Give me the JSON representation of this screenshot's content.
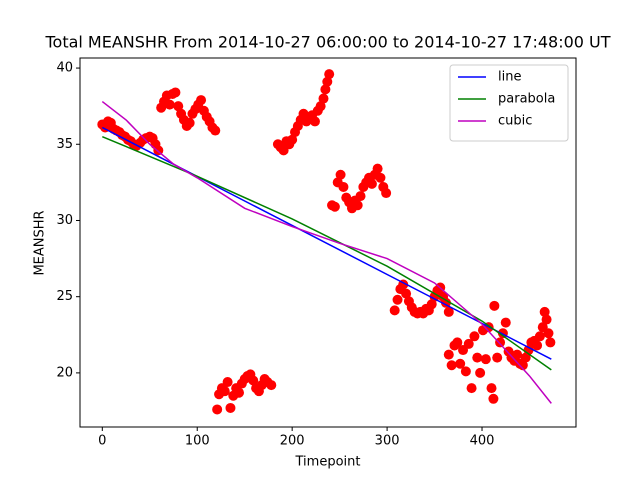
{
  "chart_data": {
    "type": "scatter",
    "title": "Total MEANSHR From 2014-10-27 06:00:00 to 2014-10-27 17:48:00 UT",
    "x_label": "Timepoint",
    "y_label": "MEANSHR",
    "xlim": [
      -23.5,
      499
    ],
    "ylim": [
      16.45,
      40.66
    ],
    "xticks": [
      0,
      100,
      200,
      300,
      400
    ],
    "yticks": [
      20,
      25,
      30,
      35,
      40
    ],
    "legend": "upper right",
    "series": [
      {
        "type": "scatter",
        "color": "#ff0000",
        "x": [
          0,
          3,
          6,
          9,
          12,
          15,
          18,
          21,
          24,
          27,
          30,
          33,
          36,
          40,
          43,
          46,
          50,
          53,
          56,
          59,
          62,
          65,
          68,
          71,
          74,
          77,
          80,
          83,
          86,
          89,
          92,
          95,
          98,
          101,
          104,
          107,
          110,
          113,
          116,
          119,
          121,
          123,
          126,
          129,
          132,
          135,
          138,
          141,
          144,
          147,
          150,
          153,
          156,
          159,
          162,
          165,
          168,
          171,
          174,
          178,
          185,
          188,
          191,
          194,
          197,
          200,
          203,
          206,
          209,
          212,
          215,
          218,
          221,
          224,
          227,
          230,
          233,
          235,
          237,
          239,
          242,
          245,
          248,
          251,
          254,
          257,
          260,
          263,
          266,
          269,
          272,
          275,
          278,
          281,
          284,
          287,
          290,
          293,
          296,
          299,
          308,
          311,
          314,
          317,
          320,
          323,
          326,
          329,
          332,
          335,
          338,
          341,
          344,
          347,
          350,
          353,
          356,
          359,
          362,
          365,
          365,
          368,
          371,
          374,
          377,
          380,
          383,
          386,
          389,
          392,
          395,
          398,
          401,
          404,
          407,
          410,
          412,
          413,
          416,
          419,
          422,
          425,
          428,
          431,
          434,
          437,
          440,
          443,
          446,
          449,
          452,
          455,
          458,
          461,
          464,
          466,
          468,
          470,
          472
        ],
        "values": [
          36.3,
          36.1,
          36.5,
          36.4,
          36.0,
          35.9,
          35.8,
          35.6,
          35.5,
          35.3,
          35.2,
          35.0,
          34.9,
          35.1,
          35.3,
          35.4,
          35.5,
          35.4,
          35.0,
          34.6,
          37.4,
          37.8,
          38.2,
          37.6,
          38.3,
          38.4,
          37.5,
          37.0,
          36.6,
          36.2,
          36.4,
          37.0,
          37.3,
          37.6,
          37.9,
          37.2,
          36.8,
          36.5,
          36.1,
          35.9,
          17.6,
          18.6,
          19.0,
          18.8,
          19.4,
          17.7,
          18.5,
          19.0,
          18.7,
          19.3,
          19.6,
          19.8,
          19.9,
          19.5,
          19.0,
          18.8,
          19.2,
          19.6,
          19.4,
          19.2,
          35.0,
          34.8,
          34.6,
          35.2,
          35.0,
          35.3,
          35.8,
          36.2,
          36.6,
          37.0,
          36.5,
          36.8,
          36.9,
          36.5,
          37.2,
          37.5,
          38.0,
          38.6,
          39.1,
          39.6,
          31.0,
          30.9,
          32.5,
          33.0,
          32.2,
          31.5,
          31.2,
          30.8,
          31.3,
          31.0,
          31.6,
          32.2,
          32.5,
          32.8,
          32.4,
          33.0,
          33.4,
          32.8,
          32.2,
          31.8,
          24.1,
          24.8,
          25.5,
          25.8,
          25.2,
          24.7,
          24.3,
          24.0,
          23.9,
          24.0,
          23.9,
          24.2,
          24.1,
          24.5,
          25.0,
          25.4,
          25.6,
          25.0,
          24.6,
          24.0,
          21.2,
          20.5,
          21.8,
          22.0,
          20.6,
          21.5,
          20.1,
          21.9,
          19.0,
          22.4,
          21.0,
          20.0,
          22.8,
          20.9,
          23.0,
          19.0,
          18.3,
          24.4,
          21.0,
          22.0,
          22.6,
          23.3,
          21.4,
          21.0,
          20.8,
          21.2,
          20.6,
          20.5,
          21.0,
          21.5,
          22.0,
          22.1,
          21.8,
          22.4,
          23.0,
          24.0,
          23.5,
          22.6,
          22.0
        ]
      },
      {
        "type": "line",
        "name": "line",
        "color": "#0000ff",
        "x": [
          0,
          473
        ],
        "values": [
          36.1,
          20.9
        ]
      },
      {
        "type": "line",
        "name": "parabola",
        "color": "#008000",
        "x": [
          0,
          100,
          200,
          300,
          400,
          473
        ],
        "values": [
          35.5,
          32.9,
          30.1,
          27.0,
          23.4,
          20.2
        ]
      },
      {
        "type": "line",
        "name": "cubic",
        "color": "#bf00bf",
        "x": [
          0,
          25,
          50,
          75,
          100,
          150,
          200,
          250,
          300,
          350,
          400,
          450,
          473
        ],
        "values": [
          37.8,
          36.6,
          35.0,
          33.7,
          32.8,
          30.8,
          29.6,
          28.5,
          27.5,
          25.9,
          23.2,
          19.8,
          18.0
        ]
      }
    ]
  }
}
